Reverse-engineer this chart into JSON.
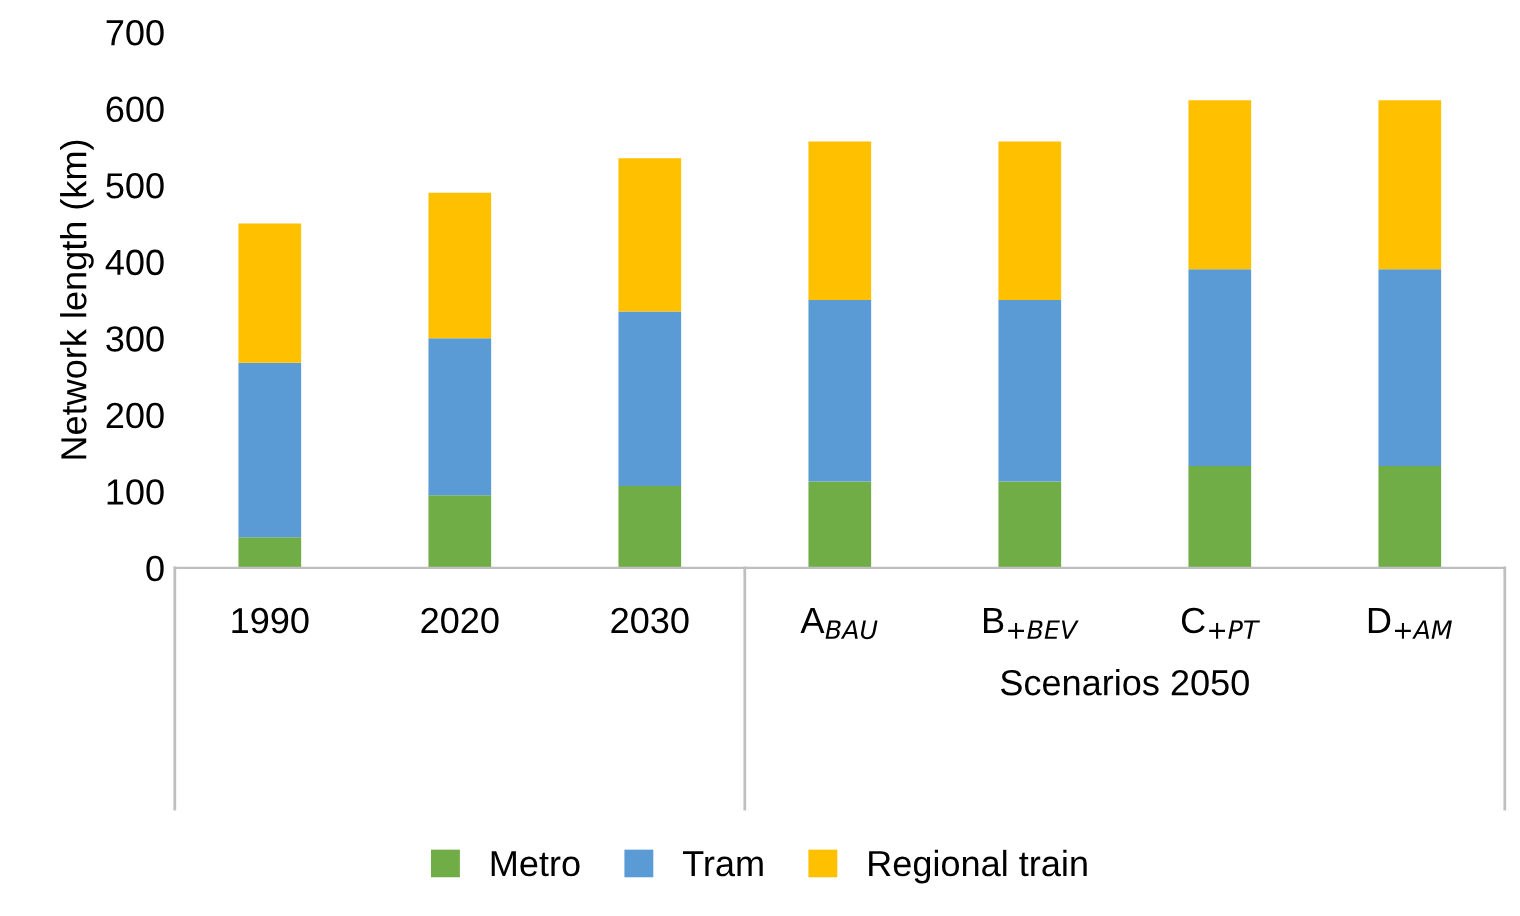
{
  "chart_data": {
    "type": "bar",
    "stacked": true,
    "ylabel": "Network length (km)",
    "categories": [
      "1990",
      "2020",
      "2030",
      "A$_{BAU}$",
      "B$_{+BEV}$",
      "C$_{+PT}$",
      "D$_{+AM}$"
    ],
    "series": [
      {
        "name": "Metro",
        "color": "#70ad47",
        "values": [
          40,
          95,
          107,
          113,
          113,
          133,
          133
        ]
      },
      {
        "name": "Tram",
        "color": "#5b9bd5",
        "values": [
          228,
          205,
          228,
          237,
          237,
          257,
          257
        ]
      },
      {
        "name": "Regional train",
        "color": "#ffc000",
        "values": [
          182,
          190,
          200,
          207,
          207,
          221,
          221
        ]
      }
    ],
    "ylim": [
      0,
      700
    ],
    "yticks": [
      0,
      100,
      200,
      300,
      400,
      500,
      600,
      700
    ],
    "grid": false,
    "legend": "bottom",
    "annotations": [
      "Scenarios 2050"
    ]
  }
}
